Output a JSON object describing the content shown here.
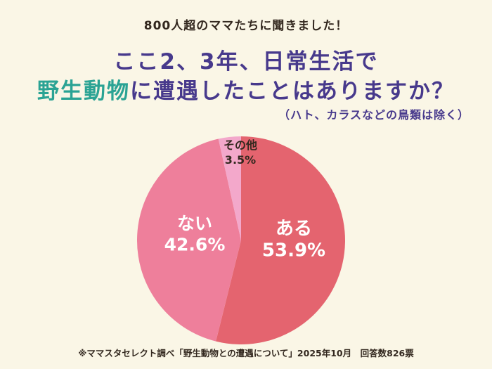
{
  "page": {
    "kicker": "800人超のママたちに聞きました！",
    "title_line1": "ここ2、3年、日常生活で",
    "title_highlight": "野生動物",
    "title_line2_rest": "に遭遇したことはありますか？",
    "subtitle": "（ハト、カラスなどの鳥類は除く）",
    "footnote": "※ママスタセレクト調べ「野生動物との遭遇について」2025年10月　回答数826票"
  },
  "colors": {
    "background": "#faf6e6",
    "title_purple": "#47398c",
    "title_teal": "#2aa394",
    "text_dark": "#33281f"
  },
  "chart_data": {
    "type": "pie",
    "title": "ここ2、3年、日常生活で野生動物に遭遇したことはありますか？",
    "subtitle": "（ハト、カラスなどの鳥類は除く）",
    "start_angle_deg": -90,
    "direction": "clockwise",
    "total_label": "回答数826票",
    "slices": [
      {
        "id": "aru",
        "name": "ある",
        "value": 53.9,
        "pct": "53.9%",
        "color": "#e4646f",
        "label_color": "#ffffff"
      },
      {
        "id": "nai",
        "name": "ない",
        "value": 42.6,
        "pct": "42.6%",
        "color": "#ee7f9b",
        "label_color": "#ffffff"
      },
      {
        "id": "sonota",
        "name": "その他",
        "value": 3.5,
        "pct": "3.5%",
        "color": "#f3a8cb",
        "label_color": "#33281f"
      }
    ]
  }
}
